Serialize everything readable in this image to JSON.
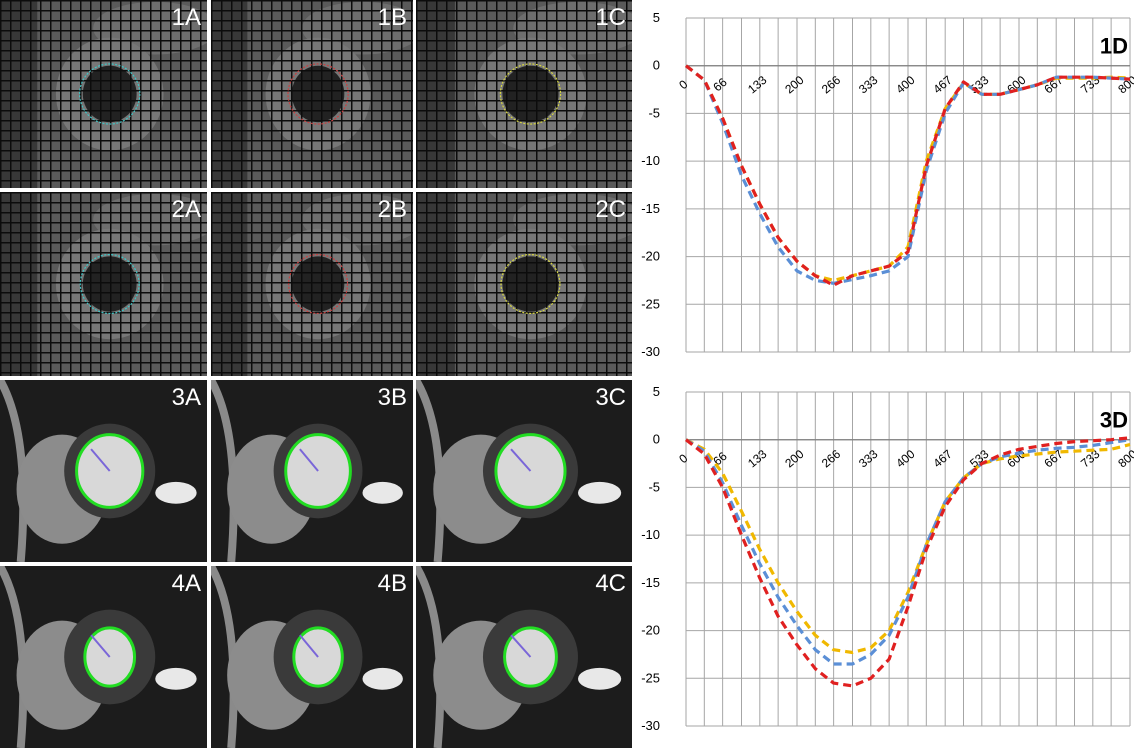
{
  "panels": [
    {
      "id": "1A",
      "kind": "tagged",
      "contour": "#3ec6c6"
    },
    {
      "id": "1B",
      "kind": "tagged",
      "contour": "#c84040"
    },
    {
      "id": "1C",
      "kind": "tagged",
      "contour": "#d6d640"
    },
    {
      "id": "2A",
      "kind": "tagged",
      "contour": "#3ec6c6"
    },
    {
      "id": "2B",
      "kind": "tagged",
      "contour": "#c84040"
    },
    {
      "id": "2C",
      "kind": "tagged",
      "contour": "#d6d640"
    },
    {
      "id": "3A",
      "kind": "cine",
      "contour": "#22dd22"
    },
    {
      "id": "3B",
      "kind": "cine",
      "contour": "#22dd22"
    },
    {
      "id": "3C",
      "kind": "cine",
      "contour": "#22dd22"
    },
    {
      "id": "4A",
      "kind": "cine",
      "contour": "#22dd22"
    },
    {
      "id": "4B",
      "kind": "cine",
      "contour": "#22dd22"
    },
    {
      "id": "4C",
      "kind": "cine",
      "contour": "#22dd22"
    }
  ],
  "chart_data": [
    {
      "type": "line",
      "label": "1D",
      "x": [
        0,
        33,
        66,
        100,
        133,
        166,
        200,
        233,
        266,
        300,
        333,
        366,
        400,
        433,
        467,
        500,
        533,
        566,
        600,
        633,
        667,
        700,
        733,
        766,
        800
      ],
      "x_tick_labels": [
        "0",
        "66",
        "133",
        "200",
        "266",
        "333",
        "400",
        "467",
        "533",
        "600",
        "667",
        "733",
        "800"
      ],
      "ylim": [
        -30,
        5
      ],
      "y_ticks": [
        "5",
        "0",
        "-5",
        "-10",
        "-15",
        "-20",
        "-25",
        "-30"
      ],
      "grid": true,
      "series": [
        {
          "color": "#f0b800",
          "dashed": true,
          "values": [
            0,
            -1.5,
            -5.5,
            -10.5,
            -14.5,
            -18,
            -20.5,
            -22,
            -22.5,
            -22,
            -21.5,
            -21,
            -19,
            -10,
            -4.5,
            -1.8,
            -3,
            -3,
            -2.5,
            -2,
            -1.3,
            -1.3,
            -1.3,
            -1.2,
            -1.3
          ]
        },
        {
          "color": "#5b8fd6",
          "dashed": true,
          "values": [
            0,
            -1.5,
            -6,
            -11.5,
            -15.5,
            -19,
            -21.5,
            -22.5,
            -22.8,
            -22.4,
            -22,
            -21.5,
            -20,
            -11,
            -5,
            -1.8,
            -3,
            -3,
            -2.5,
            -2,
            -1.2,
            -1.2,
            -1.2,
            -1.3,
            -1.4
          ]
        },
        {
          "color": "#e02020",
          "dashed": true,
          "values": [
            0,
            -1.5,
            -5.5,
            -10.5,
            -14.5,
            -18,
            -20.5,
            -22,
            -23,
            -22,
            -21.5,
            -21,
            -19.5,
            -10.5,
            -4.5,
            -1.7,
            -3,
            -3,
            -2.5,
            -2,
            -1.2,
            -1.2,
            -1.2,
            -1.3,
            -1.4
          ]
        }
      ]
    },
    {
      "type": "line",
      "label": "3D",
      "x": [
        0,
        33,
        66,
        100,
        133,
        166,
        200,
        233,
        266,
        300,
        333,
        366,
        400,
        433,
        467,
        500,
        533,
        566,
        600,
        633,
        667,
        700,
        733,
        766,
        800
      ],
      "x_tick_labels": [
        "0",
        "66",
        "133",
        "200",
        "266",
        "333",
        "400",
        "467",
        "533",
        "600",
        "667",
        "733",
        "800"
      ],
      "ylim": [
        -30,
        5
      ],
      "y_ticks": [
        "5",
        "0",
        "-5",
        "-10",
        "-15",
        "-20",
        "-25",
        "-30"
      ],
      "grid": true,
      "series": [
        {
          "color": "#f0b800",
          "dashed": true,
          "values": [
            0,
            -1,
            -3.5,
            -7.5,
            -11.5,
            -15,
            -18,
            -20.5,
            -22,
            -22.3,
            -21.8,
            -20,
            -16,
            -11,
            -6.5,
            -4,
            -2.5,
            -2,
            -1.7,
            -1.5,
            -1.3,
            -1.2,
            -1.1,
            -1,
            -0.5
          ]
        },
        {
          "color": "#5b8fd6",
          "dashed": true,
          "values": [
            0,
            -1.2,
            -4.5,
            -9,
            -13,
            -16.5,
            -19.5,
            -22,
            -23.5,
            -23.5,
            -22.5,
            -20.5,
            -16.5,
            -11,
            -6.5,
            -4,
            -2.5,
            -1.8,
            -1.4,
            -1.1,
            -0.9,
            -0.8,
            -0.6,
            -0.3,
            0
          ]
        },
        {
          "color": "#e02020",
          "dashed": true,
          "values": [
            0,
            -1.5,
            -5,
            -10,
            -14.5,
            -18.5,
            -21.5,
            -24,
            -25.5,
            -25.8,
            -25,
            -23,
            -17.5,
            -11.5,
            -7,
            -4.2,
            -2.5,
            -1.6,
            -1,
            -0.7,
            -0.4,
            -0.2,
            -0.1,
            0,
            0.2
          ]
        }
      ]
    }
  ]
}
